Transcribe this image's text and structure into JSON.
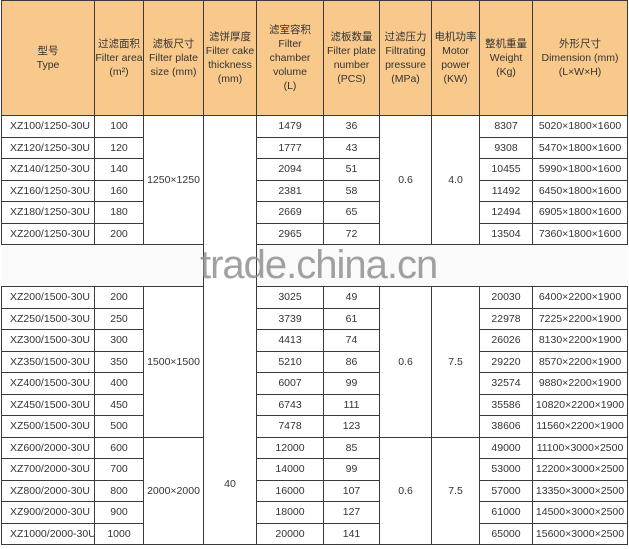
{
  "headers": [
    {
      "zh": "型号",
      "en": [
        "Type"
      ]
    },
    {
      "zh": "过滤面积",
      "en": [
        "Filter area",
        "(m²)"
      ]
    },
    {
      "zh": "滤板尺寸",
      "en": [
        "Filter plate",
        "size (mm)"
      ]
    },
    {
      "zh": "滤饼厚度",
      "en": [
        "Filter cake",
        "thickness",
        "(mm)"
      ]
    },
    {
      "zh": "滤室容积",
      "en": [
        "Filter chamber",
        "volume",
        "(L)"
      ]
    },
    {
      "zh": "滤板数量",
      "en": [
        "Filter plate",
        "number",
        "(PCS)"
      ]
    },
    {
      "zh": "过滤压力",
      "en": [
        "Filtrating",
        "pressure",
        "(MPa)"
      ]
    },
    {
      "zh": "电机功率",
      "en": [
        "Motor",
        "power",
        "(KW)"
      ]
    },
    {
      "zh": "整机重量",
      "en": [
        "Weight",
        "(Kg)"
      ]
    },
    {
      "zh": "外形尺寸",
      "en": [
        "Dimension (mm)",
        "(L×W×H)"
      ]
    }
  ],
  "cake_thickness": "40",
  "watermark": "trade.china.cn",
  "groups": [
    {
      "plate_size": "1250×1250",
      "pressure": "0.6",
      "power": "4.0",
      "rows": [
        [
          "XZ100/1250-30U",
          "100",
          "1479",
          "36",
          "8307",
          "5020×1800×1600"
        ],
        [
          "XZ120/1250-30U",
          "120",
          "1777",
          "43",
          "9308",
          "5470×1800×1600"
        ],
        [
          "XZ140/1250-30U",
          "140",
          "2094",
          "51",
          "10455",
          "5990×1800×1600"
        ],
        [
          "XZ160/1250-30U",
          "160",
          "2381",
          "58",
          "11492",
          "6450×1800×1600"
        ],
        [
          "XZ180/1250-30U",
          "180",
          "2669",
          "65",
          "12494",
          "6905×1800×1600"
        ],
        [
          "XZ200/1250-30U",
          "200",
          "2965",
          "72",
          "13504",
          "7360×1800×1600"
        ]
      ]
    },
    {
      "plate_size": "1500×1500",
      "pressure": "0.6",
      "power": "7.5",
      "rows": [
        [
          "XZ200/1500-30U",
          "200",
          "3025",
          "49",
          "20030",
          "6400×2200×1900"
        ],
        [
          "XZ250/1500-30U",
          "250",
          "3739",
          "61",
          "22978",
          "7225×2200×1900"
        ],
        [
          "XZ300/1500-30U",
          "300",
          "4413",
          "74",
          "26026",
          "8130×2200×1900"
        ],
        [
          "XZ350/1500-30U",
          "350",
          "5210",
          "86",
          "29220",
          "8570×2200×1900"
        ],
        [
          "XZ400/1500-30U",
          "400",
          "6007",
          "99",
          "32574",
          "9880×2200×1900"
        ],
        [
          "XZ450/1500-30U",
          "450",
          "6743",
          "111",
          "35586",
          "10820×2200×1900"
        ],
        [
          "XZ500/1500-30U",
          "500",
          "7478",
          "123",
          "38606",
          "11560×2200×1900"
        ]
      ]
    },
    {
      "plate_size": "2000×2000",
      "pressure": "0.6",
      "power": "7.5",
      "rows": [
        [
          "XZ600/2000-30U",
          "600",
          "12000",
          "85",
          "49000",
          "11100×3000×2500"
        ],
        [
          "XZ700/2000-30U",
          "700",
          "14000",
          "99",
          "53000",
          "12200×3000×2500"
        ],
        [
          "XZ800/2000-30U",
          "800",
          "16000",
          "107",
          "57000",
          "13350×3000×2500"
        ],
        [
          "XZ900/2000-30U",
          "900",
          "18000",
          "127",
          "61000",
          "14500×3000×2500"
        ],
        [
          "XZ1000/2000-30U",
          "1000",
          "20000",
          "141",
          "65000",
          "15600×3000×2500"
        ]
      ]
    }
  ]
}
